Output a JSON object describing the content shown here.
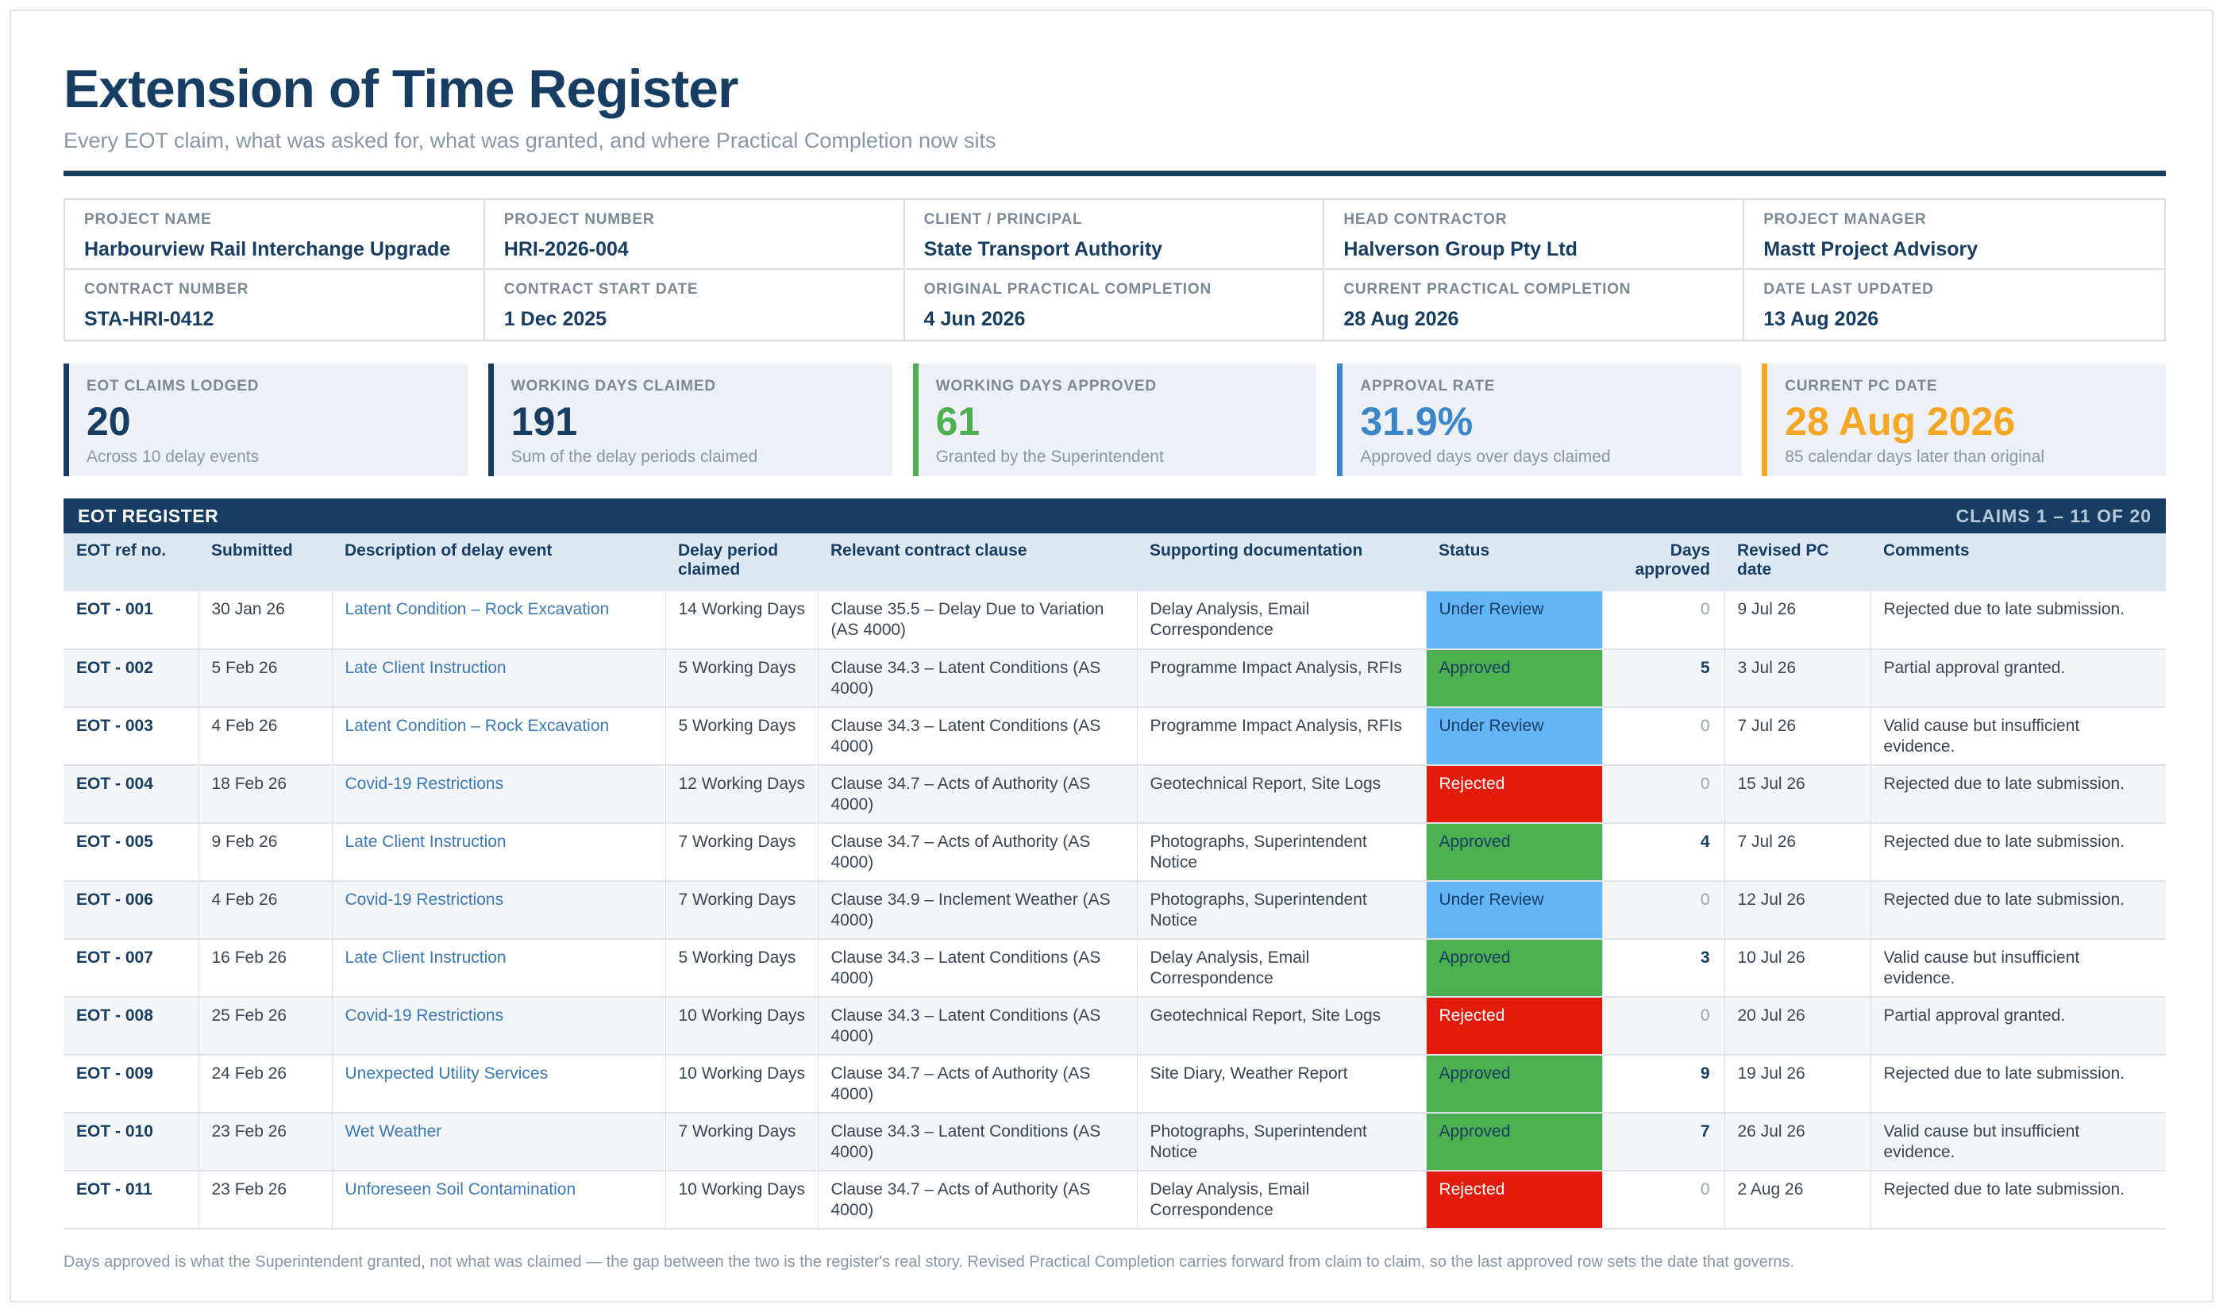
{
  "header": {
    "title": "Extension of Time Register",
    "subtitle": "Every EOT claim, what was asked for, what was granted, and where Practical Completion now sits"
  },
  "details": [
    {
      "label": "PROJECT NAME",
      "value": "Harbourview Rail Interchange Upgrade"
    },
    {
      "label": "PROJECT NUMBER",
      "value": "HRI-2026-004"
    },
    {
      "label": "CLIENT / PRINCIPAL",
      "value": "State Transport Authority"
    },
    {
      "label": "HEAD CONTRACTOR",
      "value": "Halverson Group Pty Ltd"
    },
    {
      "label": "PROJECT MANAGER",
      "value": "Mastt Project Advisory"
    },
    {
      "label": "CONTRACT NUMBER",
      "value": "STA-HRI-0412"
    },
    {
      "label": "CONTRACT START DATE",
      "value": "1 Dec 2025"
    },
    {
      "label": "ORIGINAL PRACTICAL COMPLETION",
      "value": "4 Jun 2026"
    },
    {
      "label": "CURRENT PRACTICAL COMPLETION",
      "value": "28 Aug 2026"
    },
    {
      "label": "DATE LAST UPDATED",
      "value": "13 Aug 2026"
    }
  ],
  "kpis": [
    {
      "label": "EOT CLAIMS LODGED",
      "value": "20",
      "note": "Across 10 delay events",
      "color": "#173d63"
    },
    {
      "label": "WORKING DAYS CLAIMED",
      "value": "191",
      "note": "Sum of the delay periods claimed",
      "color": "#173d63"
    },
    {
      "label": "WORKING DAYS APPROVED",
      "value": "61",
      "note": "Granted by the Superintendent",
      "color": "#4caf50"
    },
    {
      "label": "APPROVAL RATE",
      "value": "31.9%",
      "note": "Approved days over days claimed",
      "color": "#3a86c8"
    },
    {
      "label": "CURRENT PC DATE",
      "value": "28 Aug 2026",
      "note": "85 calendar days later than original",
      "color": "#f5a623"
    }
  ],
  "register": {
    "title": "EOT REGISTER",
    "range": "CLAIMS 1 – 11 OF 20",
    "columns": [
      "EOT ref no.",
      "Submitted",
      "Description of delay event",
      "Delay period claimed",
      "Relevant contract clause",
      "Supporting documentation",
      "Status",
      "Days approved",
      "Revised PC date",
      "Comments"
    ],
    "rows": [
      {
        "ref": "EOT - 001",
        "submitted": "30 Jan 26",
        "desc": "Latent Condition – Rock Excavation",
        "period": "14 Working Days",
        "clause": "Clause 35.5 – Delay Due to Variation (AS 4000)",
        "docs": "Delay Analysis, Email Correspondence",
        "status": "Under Review",
        "status_key": "review",
        "days": "0",
        "pc": "9 Jul 26",
        "comments": "Rejected due to late submission."
      },
      {
        "ref": "EOT - 002",
        "submitted": "5 Feb 26",
        "desc": "Late Client Instruction",
        "period": "5 Working Days",
        "clause": "Clause 34.3 – Latent Conditions (AS 4000)",
        "docs": "Programme Impact Analysis, RFIs",
        "status": "Approved",
        "status_key": "approved",
        "days": "5",
        "pc": "3 Jul 26",
        "comments": "Partial approval granted."
      },
      {
        "ref": "EOT - 003",
        "submitted": "4 Feb 26",
        "desc": "Latent Condition – Rock Excavation",
        "period": "5 Working Days",
        "clause": "Clause 34.3 – Latent Conditions (AS 4000)",
        "docs": "Programme Impact Analysis, RFIs",
        "status": "Under Review",
        "status_key": "review",
        "days": "0",
        "pc": "7 Jul 26",
        "comments": "Valid cause but insufficient evidence."
      },
      {
        "ref": "EOT - 004",
        "submitted": "18 Feb 26",
        "desc": "Covid-19 Restrictions",
        "period": "12 Working Days",
        "clause": "Clause 34.7 – Acts of Authority (AS 4000)",
        "docs": "Geotechnical Report, Site Logs",
        "status": "Rejected",
        "status_key": "rejected",
        "days": "0",
        "pc": "15 Jul 26",
        "comments": "Rejected due to late submission."
      },
      {
        "ref": "EOT - 005",
        "submitted": "9 Feb 26",
        "desc": "Late Client Instruction",
        "period": "7 Working Days",
        "clause": "Clause 34.7 – Acts of Authority (AS 4000)",
        "docs": "Photographs, Superintendent Notice",
        "status": "Approved",
        "status_key": "approved",
        "days": "4",
        "pc": "7 Jul 26",
        "comments": "Rejected due to late submission."
      },
      {
        "ref": "EOT - 006",
        "submitted": "4 Feb 26",
        "desc": "Covid-19 Restrictions",
        "period": "7 Working Days",
        "clause": "Clause 34.9 – Inclement Weather (AS 4000)",
        "docs": "Photographs, Superintendent Notice",
        "status": "Under Review",
        "status_key": "review",
        "days": "0",
        "pc": "12 Jul 26",
        "comments": "Rejected due to late submission."
      },
      {
        "ref": "EOT - 007",
        "submitted": "16 Feb 26",
        "desc": "Late Client Instruction",
        "period": "5 Working Days",
        "clause": "Clause 34.3 – Latent Conditions (AS 4000)",
        "docs": "Delay Analysis, Email Correspondence",
        "status": "Approved",
        "status_key": "approved",
        "days": "3",
        "pc": "10 Jul 26",
        "comments": "Valid cause but insufficient evidence."
      },
      {
        "ref": "EOT - 008",
        "submitted": "25 Feb 26",
        "desc": "Covid-19 Restrictions",
        "period": "10 Working Days",
        "clause": "Clause 34.3 – Latent Conditions (AS 4000)",
        "docs": "Geotechnical Report, Site Logs",
        "status": "Rejected",
        "status_key": "rejected",
        "days": "0",
        "pc": "20 Jul 26",
        "comments": "Partial approval granted."
      },
      {
        "ref": "EOT - 009",
        "submitted": "24 Feb 26",
        "desc": "Unexpected Utility Services",
        "period": "10 Working Days",
        "clause": "Clause 34.7 – Acts of Authority (AS 4000)",
        "docs": "Site Diary, Weather Report",
        "status": "Approved",
        "status_key": "approved",
        "days": "9",
        "pc": "19 Jul 26",
        "comments": "Rejected due to late submission."
      },
      {
        "ref": "EOT - 010",
        "submitted": "23 Feb 26",
        "desc": "Wet Weather",
        "period": "7 Working Days",
        "clause": "Clause 34.3 – Latent Conditions (AS 4000)",
        "docs": "Photographs, Superintendent Notice",
        "status": "Approved",
        "status_key": "approved",
        "days": "7",
        "pc": "26 Jul 26",
        "comments": "Valid cause but insufficient evidence."
      },
      {
        "ref": "EOT - 011",
        "submitted": "23 Feb 26",
        "desc": "Unforeseen Soil Contamination",
        "period": "10 Working Days",
        "clause": "Clause 34.7 – Acts of Authority (AS 4000)",
        "docs": "Delay Analysis, Email Correspondence",
        "status": "Rejected",
        "status_key": "rejected",
        "days": "0",
        "pc": "2 Aug 26",
        "comments": "Rejected due to late submission."
      }
    ]
  },
  "footnote": "Days approved is what the Superintendent granted, not what was claimed — the gap between the two is the register's real story. Revised Practical Completion carries forward from claim to claim, so the last approved row sets the date that governs."
}
